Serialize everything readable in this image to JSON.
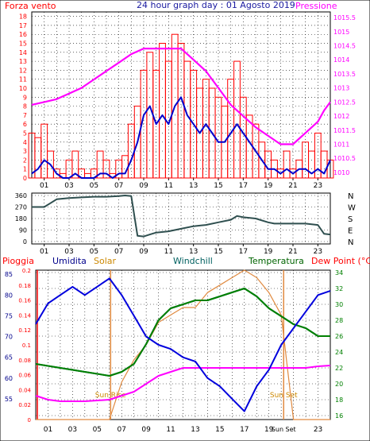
{
  "chart_data": [
    {
      "type": "line",
      "title": "24 hour graph day : 01 Agosto 2019",
      "left_axis_label": "Forza vento",
      "right_axis_label": "Pressione",
      "x_ticks": [
        "01",
        "03",
        "05",
        "07",
        "09",
        "11",
        "13",
        "15",
        "17",
        "19",
        "21",
        "23"
      ],
      "y_left_ticks": [
        "0",
        "1",
        "2",
        "3",
        "4",
        "5",
        "6",
        "7",
        "8",
        "9",
        "10",
        "11",
        "12",
        "13",
        "14",
        "15",
        "16",
        "17",
        "18"
      ],
      "y_left_range": [
        0,
        18.5
      ],
      "y_right_ticks": [
        "1010",
        "1010.5",
        "1011",
        "1011.5",
        "1012",
        "1012.5",
        "1013",
        "1013.5",
        "1014",
        "1014.5",
        "1015",
        "1015.5"
      ],
      "y_right_range": [
        1009.8,
        1015.7
      ],
      "grid": true,
      "series": [
        {
          "name": "Forza vento",
          "color": "#ff0000",
          "style": "gust-bars",
          "x": [
            0,
            0.5,
            1,
            1.5,
            2,
            2.5,
            3,
            3.5,
            4,
            4.5,
            5,
            5.5,
            6,
            6.5,
            7,
            7.5,
            8,
            8.5,
            9,
            9.5,
            10,
            10.5,
            11,
            11.5,
            12,
            12.5,
            13,
            13.5,
            14,
            14.5,
            15,
            15.5,
            16,
            16.5,
            17,
            17.5,
            18,
            18.5,
            19,
            19.5,
            20,
            20.5,
            21,
            21.5,
            22,
            22.5,
            23,
            23.5,
            24
          ],
          "y": [
            5,
            4.5,
            6,
            3,
            1,
            0.5,
            2,
            3,
            1,
            0.5,
            1,
            3,
            2,
            0.5,
            2,
            2.5,
            6,
            8,
            12,
            14,
            12,
            15,
            13,
            16,
            15,
            13,
            12,
            10,
            11,
            10,
            9,
            8,
            11,
            13,
            9,
            7,
            6,
            4,
            3,
            2,
            1,
            3,
            1,
            2,
            4,
            3,
            5,
            3,
            2
          ]
        },
        {
          "name": "Forza vento (media)",
          "color": "#0000cc",
          "x": [
            0,
            0.5,
            1,
            1.5,
            2,
            2.5,
            3,
            3.5,
            4,
            4.5,
            5,
            5.5,
            6,
            6.5,
            7,
            7.5,
            8,
            8.5,
            9,
            9.5,
            10,
            10.5,
            11,
            11.5,
            12,
            12.5,
            13,
            13.5,
            14,
            14.5,
            15,
            15.5,
            16,
            16.5,
            17,
            17.5,
            18,
            18.5,
            19,
            19.5,
            20,
            20.5,
            21,
            21.5,
            22,
            22.5,
            23,
            23.5,
            24
          ],
          "y": [
            0.5,
            1,
            2,
            1.5,
            0.5,
            0,
            0,
            0.5,
            0,
            0,
            0,
            0.5,
            0.5,
            0,
            0.5,
            0.5,
            2,
            4,
            7,
            8,
            6,
            7,
            6,
            8,
            9,
            7,
            6,
            5,
            6,
            5,
            4,
            4,
            5,
            6,
            5,
            4,
            3,
            2,
            1,
            1,
            0.5,
            1,
            0.5,
            1,
            1,
            0.5,
            1,
            0.5,
            2
          ]
        },
        {
          "name": "Pressione",
          "color": "#ff00ff",
          "axis": "right",
          "x": [
            0,
            1,
            2,
            3,
            4,
            5,
            6,
            7,
            8,
            9,
            10,
            11,
            12,
            13,
            14,
            15,
            16,
            17,
            18,
            19,
            20,
            21,
            22,
            23,
            23.5,
            24
          ],
          "y": [
            1012.4,
            1012.5,
            1012.6,
            1012.8,
            1013.0,
            1013.3,
            1013.6,
            1013.9,
            1014.2,
            1014.4,
            1014.4,
            1014.4,
            1014.4,
            1014.0,
            1013.6,
            1013.0,
            1012.4,
            1012.0,
            1011.6,
            1011.3,
            1011.0,
            1011.0,
            1011.4,
            1011.8,
            1012.2,
            1012.5
          ]
        }
      ]
    },
    {
      "type": "line",
      "title": "",
      "y_left_ticks": [
        "0",
        "90",
        "180",
        "270",
        "360"
      ],
      "y_left_range": [
        0,
        360
      ],
      "y_right_labels": [
        "N",
        "W",
        "S",
        "E",
        "N"
      ],
      "x_ticks": [
        "01",
        "03",
        "05",
        "07",
        "09",
        "11",
        "13",
        "15",
        "17",
        "19",
        "21",
        "23"
      ],
      "grid": true,
      "series": [
        {
          "name": "Direzione vento",
          "color": "#2f4f4f",
          "x": [
            0,
            1,
            1.5,
            2,
            3,
            4,
            5,
            6,
            7,
            7.5,
            8,
            8.5,
            9,
            9.5,
            10,
            11,
            12,
            13,
            14,
            15,
            16,
            16.5,
            17,
            18,
            19,
            19.5,
            20,
            21,
            22,
            23,
            23.5,
            24
          ],
          "y": [
            270,
            270,
            300,
            330,
            340,
            345,
            350,
            350,
            355,
            360,
            355,
            45,
            40,
            55,
            70,
            80,
            100,
            120,
            130,
            150,
            170,
            200,
            190,
            180,
            150,
            140,
            140,
            140,
            140,
            130,
            60,
            55
          ]
        }
      ]
    },
    {
      "type": "line",
      "title": "",
      "header_labels": [
        "Pioggia",
        "Umidita",
        "Solar",
        "Windchill",
        "Temperatura",
        "Dew Point (°C)"
      ],
      "rain_ticks": [
        "0",
        "0.02",
        "0.04",
        "0.06",
        "0.08",
        "0.1",
        "0.12",
        "0.14",
        "0.16",
        "0.18",
        "0.2"
      ],
      "humidity_ticks": [
        "55",
        "60",
        "65",
        "70",
        "75",
        "80",
        "85"
      ],
      "temp_ticks": [
        "16",
        "18",
        "20",
        "22",
        "24",
        "26",
        "28",
        "30",
        "32",
        "34"
      ],
      "y_rain_range": [
        0,
        0.2
      ],
      "y_humidity_range": [
        50,
        86
      ],
      "y_temp_range": [
        15.5,
        34.3
      ],
      "x_ticks": [
        "01",
        "03",
        "05",
        "07",
        "09",
        "11",
        "13",
        "15",
        "17",
        "19",
        "21",
        "23"
      ],
      "x_extra_labels": [
        "Sun Rise",
        "Sun Set"
      ],
      "sun_rise": 6.1,
      "sun_set": 20.2,
      "grid": true,
      "series": [
        {
          "name": "Umidita",
          "color": "#0000dd",
          "axis": "humidity",
          "x": [
            0,
            1,
            2,
            3,
            4,
            5,
            6,
            7,
            8,
            9,
            10,
            11,
            12,
            13,
            14,
            15,
            16,
            17,
            18,
            19,
            20,
            21,
            22,
            23,
            24
          ],
          "y": [
            73,
            78,
            80,
            82,
            80,
            82,
            84,
            80,
            75,
            70,
            68,
            67,
            65,
            64,
            60,
            58,
            55,
            52,
            58,
            62,
            68,
            72,
            76,
            80,
            81
          ]
        },
        {
          "name": "Solar",
          "color": "#e08a40",
          "axis": "rain",
          "x": [
            0,
            5,
            6,
            7,
            8,
            9,
            10,
            11,
            12,
            13,
            14,
            15,
            16,
            17,
            18,
            19,
            20,
            21,
            24
          ],
          "y": [
            0,
            0,
            0,
            0.05,
            0.08,
            0.1,
            0.13,
            0.14,
            0.15,
            0.15,
            0.17,
            0.18,
            0.19,
            0.2,
            0.19,
            0.17,
            0.14,
            0,
            0
          ]
        },
        {
          "name": "Windchill",
          "color": "#006060",
          "axis": "temp",
          "x": [
            0,
            2,
            4,
            6,
            7,
            8,
            9,
            10,
            11,
            12,
            13,
            14,
            15,
            16,
            17,
            18,
            19,
            20,
            21,
            22,
            23,
            24
          ],
          "y": [
            22.5,
            22,
            21.5,
            21,
            21.5,
            22.5,
            25,
            28,
            29.5,
            30,
            30.5,
            30.5,
            31,
            31.5,
            32,
            31,
            29.5,
            28.5,
            27.5,
            27,
            26,
            26
          ]
        },
        {
          "name": "Temperatura",
          "color": "#008000",
          "axis": "temp",
          "x": [
            0,
            2,
            4,
            6,
            7,
            8,
            9,
            10,
            11,
            12,
            13,
            14,
            15,
            16,
            17,
            18,
            19,
            20,
            21,
            22,
            23,
            24
          ],
          "y": [
            22.5,
            22,
            21.5,
            21,
            21.5,
            22.5,
            25,
            28,
            29.5,
            30,
            30.5,
            30.5,
            31,
            31.5,
            32,
            31,
            29.5,
            28.5,
            27.5,
            27,
            26,
            26
          ]
        },
        {
          "name": "Dew Point (°C)",
          "color": "#ff00ff",
          "axis": "temp",
          "x": [
            0,
            1,
            2,
            3,
            4,
            5,
            6,
            7,
            8,
            9,
            10,
            11,
            12,
            13,
            14,
            15,
            16,
            17,
            18,
            19,
            20,
            21,
            22,
            23,
            24
          ],
          "y": [
            18.5,
            18,
            17.8,
            17.8,
            17.8,
            17.9,
            18,
            18.5,
            19,
            20,
            21,
            21.5,
            22,
            22,
            22,
            22,
            22,
            22,
            22,
            22,
            22,
            22,
            22,
            22.2,
            22.3
          ]
        },
        {
          "name": "Pioggia",
          "color": "#ff0000",
          "axis": "rain",
          "x": [
            0,
            24
          ],
          "y": [
            0,
            0
          ]
        }
      ]
    }
  ]
}
